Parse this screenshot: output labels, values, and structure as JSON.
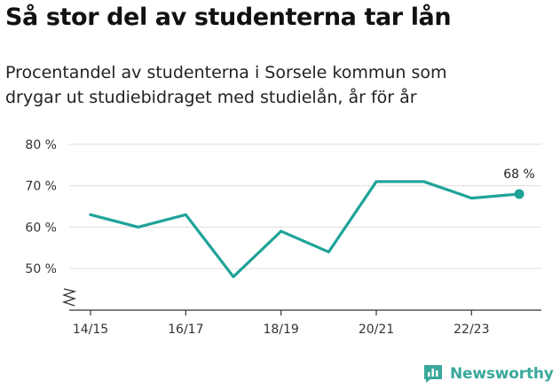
{
  "title": "Så stor del av studenterna tar lån",
  "subtitle_lines": [
    "Procentandel av studenterna i Sorsele kommun som",
    "drygar ut studiebidraget med studielån, år för år"
  ],
  "brand": {
    "name": "Newsworthy",
    "icon": "newsworthy-logo-icon",
    "color": "#3aa89b"
  },
  "colors": {
    "line": "#1fa398",
    "grid": "#dddddd",
    "axis": "#333333"
  },
  "chart_data": {
    "type": "line",
    "title": "Så stor del av studenterna tar lån",
    "ylim": [
      40,
      82
    ],
    "yticks": [
      50,
      60,
      70,
      80
    ],
    "ytick_labels": [
      "50 %",
      "60 %",
      "70 %",
      "80 %"
    ],
    "axis_break": true,
    "grid": true,
    "xticks": [
      "14/15",
      "16/17",
      "18/19",
      "20/21",
      "22/23"
    ],
    "x": [
      "14/15",
      "15/16",
      "16/17",
      "17/18",
      "18/19",
      "19/20",
      "20/21",
      "21/22",
      "22/23",
      "23/24"
    ],
    "series": [
      {
        "values": [
          63,
          60,
          63,
          48,
          59,
          54,
          71,
          71,
          67,
          68
        ]
      }
    ],
    "last_point_label": "68 %"
  }
}
